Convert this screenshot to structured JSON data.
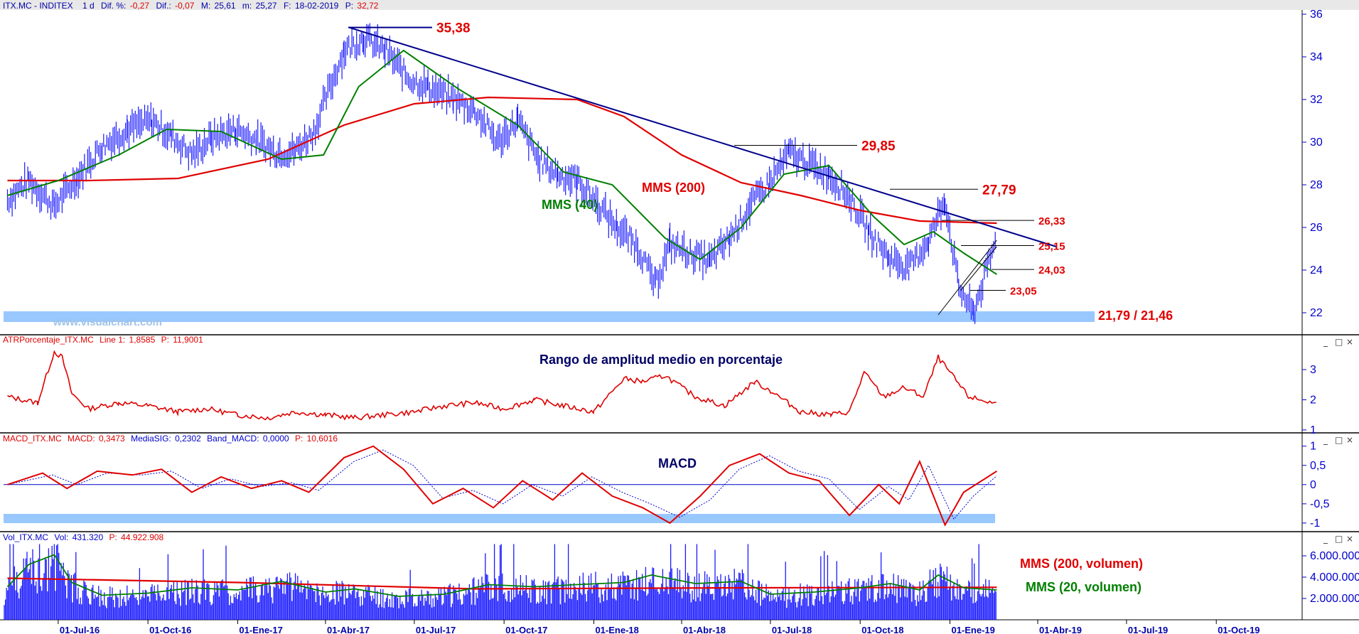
{
  "colors": {
    "price": "#1a1aff",
    "mms40": "#008000",
    "mms200": "#e00000",
    "trendline": "#00008b",
    "support_band": "#99c8ff",
    "axis_text": "#0000cc",
    "annotation_red": "#e00000",
    "annotation_green": "#008000",
    "annotation_navy": "#000066",
    "separator": "#000000"
  },
  "chart_data": [
    {
      "type": "line",
      "panel": "price",
      "header": {
        "symbol": "ITX.MC - INDITEX",
        "period": "1 d",
        "dif_pct_label": "Dif. %:",
        "dif_pct": "-0,27",
        "dif_label": "Dif.:",
        "dif": "-0,07",
        "max_label": "M:",
        "max": "25,61",
        "min_label": "m:",
        "min": "25,27",
        "date_label": "F:",
        "date": "18-02-2019",
        "close_label": "P:",
        "close": "32,72"
      },
      "ylim": [
        21,
        36.2
      ],
      "y_ticks": [
        "22",
        "24",
        "26",
        "28",
        "30",
        "32",
        "34",
        "36"
      ],
      "y_tick_values": [
        22,
        24,
        26,
        28,
        30,
        32,
        34,
        36
      ],
      "watermark": "www.visualchart.com",
      "series": [
        {
          "name": "ITX.MC",
          "x": [
            "2016-05-10",
            "2016-06-01",
            "2016-06-27",
            "2016-07-20",
            "2016-08-15",
            "2016-09-10",
            "2016-10-05",
            "2016-10-25",
            "2016-11-15",
            "2016-12-05",
            "2016-12-30",
            "2017-01-20",
            "2017-02-10",
            "2017-03-01",
            "2017-03-20",
            "2017-04-05",
            "2017-04-20",
            "2017-05-10",
            "2017-06-01",
            "2017-06-25",
            "2017-07-15",
            "2017-08-10",
            "2017-09-01",
            "2017-09-25",
            "2017-10-15",
            "2017-11-05",
            "2017-11-25",
            "2017-12-15",
            "2018-01-05",
            "2018-01-25",
            "2018-02-15",
            "2018-03-05",
            "2018-03-20",
            "2018-04-10",
            "2018-04-30",
            "2018-05-20",
            "2018-06-10",
            "2018-06-30",
            "2018-07-20",
            "2018-08-10",
            "2018-08-30",
            "2018-09-20",
            "2018-10-10",
            "2018-10-30",
            "2018-11-20",
            "2018-12-10",
            "2018-12-27",
            "2019-01-10",
            "2019-01-25",
            "2019-02-18"
          ],
          "values": [
            27.3,
            28.2,
            27.0,
            28.3,
            29.8,
            30.6,
            31.0,
            30.3,
            29.4,
            30.2,
            30.6,
            30.1,
            29.5,
            29.6,
            30.5,
            32.5,
            34.3,
            34.9,
            34.3,
            33.0,
            32.6,
            32.0,
            31.5,
            30.0,
            31.0,
            29.2,
            28.5,
            28.2,
            27.1,
            26.0,
            25.1,
            23.3,
            25.2,
            24.8,
            24.4,
            25.5,
            27.0,
            28.1,
            29.5,
            29.0,
            28.5,
            27.4,
            25.8,
            24.6,
            24.1,
            25.4,
            27.3,
            23.2,
            22.0,
            25.5
          ]
        },
        {
          "name": "MMS (40)",
          "x": [
            "2016-05-10",
            "2016-07-01",
            "2016-09-01",
            "2016-10-20",
            "2016-12-15",
            "2017-02-15",
            "2017-03-30",
            "2017-05-05",
            "2017-06-20",
            "2017-08-15",
            "2017-10-15",
            "2017-12-01",
            "2018-01-20",
            "2018-03-15",
            "2018-04-20",
            "2018-06-01",
            "2018-07-15",
            "2018-08-30",
            "2018-10-15",
            "2018-11-15",
            "2018-12-15",
            "2019-01-15",
            "2019-02-18"
          ],
          "values": [
            27.5,
            28.2,
            29.4,
            30.6,
            30.5,
            29.2,
            29.4,
            32.6,
            34.3,
            32.5,
            30.8,
            28.6,
            28.0,
            25.5,
            24.5,
            26.0,
            28.5,
            28.9,
            26.5,
            25.2,
            25.8,
            24.8,
            23.8
          ]
        },
        {
          "name": "MMS (200)",
          "x": [
            "2016-05-10",
            "2016-08-01",
            "2016-11-01",
            "2017-02-01",
            "2017-04-20",
            "2017-07-01",
            "2017-09-15",
            "2017-12-15",
            "2018-02-01",
            "2018-04-01",
            "2018-06-01",
            "2018-08-01",
            "2018-10-01",
            "2018-12-01",
            "2019-02-18"
          ],
          "values": [
            28.2,
            28.2,
            28.3,
            29.2,
            30.8,
            31.8,
            32.1,
            32.0,
            31.2,
            29.4,
            28.1,
            27.5,
            26.8,
            26.3,
            26.2
          ]
        }
      ],
      "trendline": {
        "x": [
          "2017-04-25",
          "2019-04-20"
        ],
        "values": [
          35.38,
          25.1
        ]
      },
      "annotations": [
        {
          "label": "35,38",
          "x": "2017-04-25",
          "value": 35.38,
          "color": "red"
        },
        {
          "label": "29,85",
          "x": "2018-06-15",
          "value": 29.85,
          "color": "red"
        },
        {
          "label": "27,79",
          "x": "2018-11-15",
          "value": 27.79,
          "color": "red"
        },
        {
          "label": "26,33",
          "x": "2019-01-25",
          "value": 26.33,
          "color": "red"
        },
        {
          "label": "25,15",
          "x": "2019-01-25",
          "value": 25.15,
          "color": "red"
        },
        {
          "label": "24,03",
          "x": "2019-01-25",
          "value": 24.03,
          "color": "red"
        },
        {
          "label": "23,05",
          "x": "2019-01-25",
          "value": 23.05,
          "color": "red"
        },
        {
          "label": "21,79 / 21,46",
          "value": 21.79,
          "value_low": 21.46,
          "color": "red"
        }
      ],
      "series_labels": [
        {
          "label": "MMS (200)",
          "x": "2018-01-25",
          "value": 27.8,
          "color": "red"
        },
        {
          "label": "MMS (40)",
          "x": "2017-09-05",
          "value": 27.0,
          "color": "green"
        }
      ]
    },
    {
      "type": "line",
      "panel": "atr",
      "title": "Rango de amplitud medio en porcentaje",
      "header": {
        "name": "ATRPorcentaje_ITX.MC",
        "line_label": "Line 1:",
        "line": "1,8585",
        "p_label": "P:",
        "p": "11,9001"
      },
      "ylim": [
        0.95,
        3.8
      ],
      "y_ticks": [
        "1",
        "2",
        "3"
      ],
      "y_tick_values": [
        1,
        2,
        3
      ],
      "series": [
        {
          "name": "Line 1",
          "x": [
            "2016-05-10",
            "2016-06-10",
            "2016-06-27",
            "2016-07-05",
            "2016-07-15",
            "2016-08-01",
            "2016-09-01",
            "2016-10-01",
            "2016-11-01",
            "2016-12-01",
            "2017-01-01",
            "2017-02-01",
            "2017-03-01",
            "2017-04-01",
            "2017-05-01",
            "2017-06-01",
            "2017-07-01",
            "2017-08-01",
            "2017-09-01",
            "2017-10-01",
            "2017-11-01",
            "2017-12-01",
            "2018-01-01",
            "2018-02-01",
            "2018-02-20",
            "2018-03-15",
            "2018-04-15",
            "2018-05-15",
            "2018-06-15",
            "2018-07-01",
            "2018-08-01",
            "2018-09-01",
            "2018-09-20",
            "2018-10-05",
            "2018-10-25",
            "2018-11-15",
            "2018-12-05",
            "2018-12-20",
            "2019-01-01",
            "2019-01-20",
            "2019-02-18"
          ],
          "values": [
            2.1,
            1.9,
            3.6,
            3.4,
            2.2,
            1.7,
            1.9,
            1.8,
            1.6,
            1.7,
            1.5,
            1.4,
            1.6,
            1.5,
            1.4,
            1.5,
            1.6,
            1.8,
            1.9,
            1.7,
            2.0,
            1.8,
            1.6,
            2.7,
            2.6,
            2.8,
            2.1,
            1.8,
            2.6,
            2.3,
            1.6,
            1.5,
            1.6,
            2.9,
            2.1,
            2.4,
            2.1,
            3.4,
            2.9,
            2.1,
            1.86
          ]
        }
      ]
    },
    {
      "type": "line",
      "panel": "macd",
      "title": "MACD",
      "header": {
        "name": "MACD_ITX.MC",
        "macd_label": "MACD:",
        "macd": "0,3473",
        "sig_label": "MediaSIG:",
        "sig": "0,2302",
        "band_label": "Band_MACD:",
        "band": "0,0000",
        "p_label": "P:",
        "p": "10,6016"
      },
      "ylim": [
        -1.15,
        1.05
      ],
      "y_ticks": [
        "1",
        "0,5",
        "0",
        "-0,5",
        "-1"
      ],
      "y_tick_values": [
        1,
        0.5,
        0,
        -0.5,
        -1
      ],
      "zero_line": 0,
      "series": [
        {
          "name": "MACD",
          "x": [
            "2016-05-10",
            "2016-06-15",
            "2016-07-10",
            "2016-08-10",
            "2016-09-15",
            "2016-10-15",
            "2016-11-15",
            "2016-12-15",
            "2017-01-15",
            "2017-02-15",
            "2017-03-15",
            "2017-04-20",
            "2017-05-20",
            "2017-06-20",
            "2017-07-20",
            "2017-08-20",
            "2017-09-20",
            "2017-10-20",
            "2017-11-20",
            "2017-12-20",
            "2018-01-20",
            "2018-02-20",
            "2018-03-20",
            "2018-04-20",
            "2018-05-20",
            "2018-06-20",
            "2018-07-20",
            "2018-08-20",
            "2018-09-20",
            "2018-10-20",
            "2018-11-10",
            "2018-12-01",
            "2018-12-27",
            "2019-01-15",
            "2019-02-18"
          ],
          "values": [
            0.0,
            0.3,
            -0.1,
            0.35,
            0.25,
            0.4,
            -0.2,
            0.2,
            -0.1,
            0.1,
            -0.2,
            0.7,
            1.0,
            0.4,
            -0.5,
            -0.1,
            -0.6,
            0.1,
            -0.4,
            0.3,
            -0.3,
            -0.6,
            -1.0,
            -0.3,
            0.5,
            0.8,
            0.3,
            0.1,
            -0.8,
            0.0,
            -0.5,
            0.6,
            -1.05,
            -0.2,
            0.35
          ]
        },
        {
          "name": "MediaSIG",
          "x": [
            "2016-05-10",
            "2016-06-25",
            "2016-07-20",
            "2016-08-20",
            "2016-09-25",
            "2016-10-25",
            "2016-11-25",
            "2016-12-25",
            "2017-01-25",
            "2017-02-25",
            "2017-03-25",
            "2017-04-30",
            "2017-05-30",
            "2017-06-30",
            "2017-07-30",
            "2017-08-30",
            "2017-09-30",
            "2017-10-30",
            "2017-11-30",
            "2017-12-30",
            "2018-01-30",
            "2018-02-28",
            "2018-03-30",
            "2018-04-30",
            "2018-05-30",
            "2018-06-30",
            "2018-07-30",
            "2018-08-30",
            "2018-09-30",
            "2018-10-30",
            "2018-11-20",
            "2018-12-10",
            "2019-01-05",
            "2019-01-25",
            "2019-02-18"
          ],
          "values": [
            0.0,
            0.25,
            0.0,
            0.3,
            0.25,
            0.35,
            -0.1,
            0.15,
            -0.05,
            0.05,
            -0.15,
            0.6,
            0.9,
            0.5,
            -0.35,
            -0.15,
            -0.5,
            0.0,
            -0.3,
            0.2,
            -0.2,
            -0.5,
            -0.85,
            -0.4,
            0.4,
            0.75,
            0.35,
            0.15,
            -0.65,
            -0.05,
            -0.4,
            0.5,
            -0.9,
            -0.3,
            0.23
          ]
        }
      ]
    },
    {
      "type": "bar",
      "panel": "volume",
      "header": {
        "name": "Vol_ITX.MC",
        "vol_label": "Vol:",
        "vol": "431.320",
        "p_label": "P:",
        "p": "44.922.908"
      },
      "ylim": [
        0,
        7200000
      ],
      "y_ticks": [
        "6.000.000",
        "4.000.000",
        "2.000.000"
      ],
      "y_tick_values": [
        6000000,
        4000000,
        2000000
      ],
      "series": [
        {
          "name": "MMS (200, volumen)",
          "x": [
            "2016-05-10",
            "2017-01-01",
            "2017-09-01",
            "2018-06-01",
            "2019-02-18"
          ],
          "values": [
            3900000,
            3500000,
            2900000,
            3000000,
            3050000
          ]
        },
        {
          "name": "MMS (20, volumen)",
          "x": [
            "2016-05-10",
            "2016-06-01",
            "2016-06-27",
            "2016-07-15",
            "2016-08-15",
            "2016-10-01",
            "2016-11-15",
            "2017-01-01",
            "2017-02-15",
            "2017-04-01",
            "2017-05-01",
            "2017-06-15",
            "2017-08-01",
            "2017-09-15",
            "2017-11-01",
            "2017-12-15",
            "2018-02-01",
            "2018-03-01",
            "2018-04-15",
            "2018-06-01",
            "2018-07-01",
            "2018-08-15",
            "2018-10-01",
            "2018-11-01",
            "2018-12-01",
            "2018-12-20",
            "2019-01-15",
            "2019-02-18"
          ],
          "values": [
            3100000,
            5200000,
            6100000,
            3500000,
            2300000,
            2500000,
            3000000,
            2800000,
            3600000,
            2600000,
            2900000,
            2200000,
            2400000,
            3300000,
            3100000,
            3300000,
            3500000,
            4200000,
            3400000,
            3600000,
            2400000,
            2600000,
            3000000,
            3400000,
            2800000,
            4200000,
            3000000,
            2800000
          ]
        }
      ],
      "labels": [
        {
          "label": "MMS (200, volumen)",
          "color": "red"
        },
        {
          "label": "MMS (20, volumen)",
          "color": "green"
        }
      ]
    }
  ],
  "x_axis": {
    "range": [
      "2016-05-06",
      "2019-12-28"
    ],
    "ticks": [
      {
        "label": "01-Jul-16",
        "date": "2016-07-01"
      },
      {
        "label": "01-Oct-16",
        "date": "2016-10-01"
      },
      {
        "label": "01-Ene-17",
        "date": "2017-01-01"
      },
      {
        "label": "01-Abr-17",
        "date": "2017-04-01"
      },
      {
        "label": "01-Jul-17",
        "date": "2017-07-01"
      },
      {
        "label": "01-Oct-17",
        "date": "2017-10-01"
      },
      {
        "label": "01-Ene-18",
        "date": "2018-01-01"
      },
      {
        "label": "01-Abr-18",
        "date": "2018-04-01"
      },
      {
        "label": "01-Jul-18",
        "date": "2018-07-01"
      },
      {
        "label": "01-Oct-18",
        "date": "2018-10-01"
      },
      {
        "label": "01-Ene-19",
        "date": "2019-01-01"
      },
      {
        "label": "01-Abr-19",
        "date": "2019-04-01"
      },
      {
        "label": "01-Jul-19",
        "date": "2019-07-01"
      },
      {
        "label": "01-Oct-19",
        "date": "2019-10-01"
      }
    ],
    "last_date": "2019-02-18"
  },
  "window_controls": {
    "minimize": "_",
    "restore": "□",
    "close": "×"
  }
}
